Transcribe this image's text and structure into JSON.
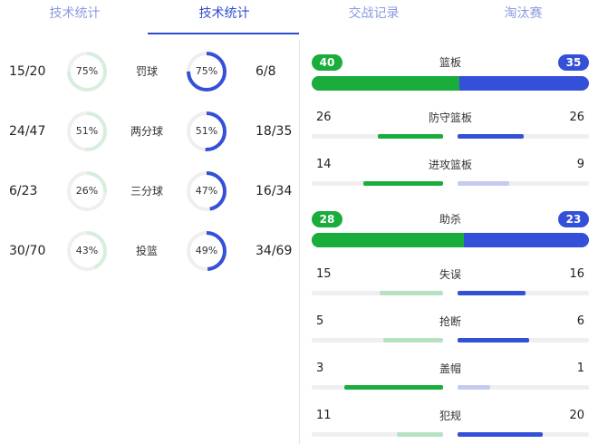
{
  "tabs": [
    {
      "label": "技术统计",
      "active": false
    },
    {
      "label": "技术统计",
      "active": true
    },
    {
      "label": "交战记录",
      "active": false
    },
    {
      "label": "淘汰赛",
      "active": false
    }
  ],
  "shooting": [
    {
      "label": "罚球",
      "left": "15/20",
      "left_pct": 75,
      "right": "6/8",
      "right_pct": 75
    },
    {
      "label": "两分球",
      "left": "24/47",
      "left_pct": 51,
      "right": "18/35",
      "right_pct": 51
    },
    {
      "label": "三分球",
      "left": "6/23",
      "left_pct": 26,
      "right": "16/34",
      "right_pct": 47
    },
    {
      "label": "投篮",
      "left": "30/70",
      "left_pct": 43,
      "right": "34/69",
      "right_pct": 49
    }
  ],
  "rebounds": {
    "total": {
      "label": "篮板",
      "left": 40,
      "right": 35
    },
    "defensive": {
      "label": "防守篮板",
      "left": 26,
      "right": 26
    },
    "offensive": {
      "label": "进攻篮板",
      "left": 14,
      "right": 9
    }
  },
  "assists": {
    "total": {
      "label": "助杀",
      "left": 28,
      "right": 23
    },
    "items": [
      {
        "label": "失误",
        "left": 15,
        "right": 16
      },
      {
        "label": "抢断",
        "left": 5,
        "right": 6
      },
      {
        "label": "盖帽",
        "left": 3,
        "right": 1
      },
      {
        "label": "犯规",
        "left": 11,
        "right": 20
      }
    ]
  },
  "colors": {
    "home": "#1aad3c",
    "home_light": "#b7e2c2",
    "home_ring_light": "#d8eedd",
    "away": "#3550d8",
    "away_light": "#c4cbef",
    "track": "#efefef"
  }
}
